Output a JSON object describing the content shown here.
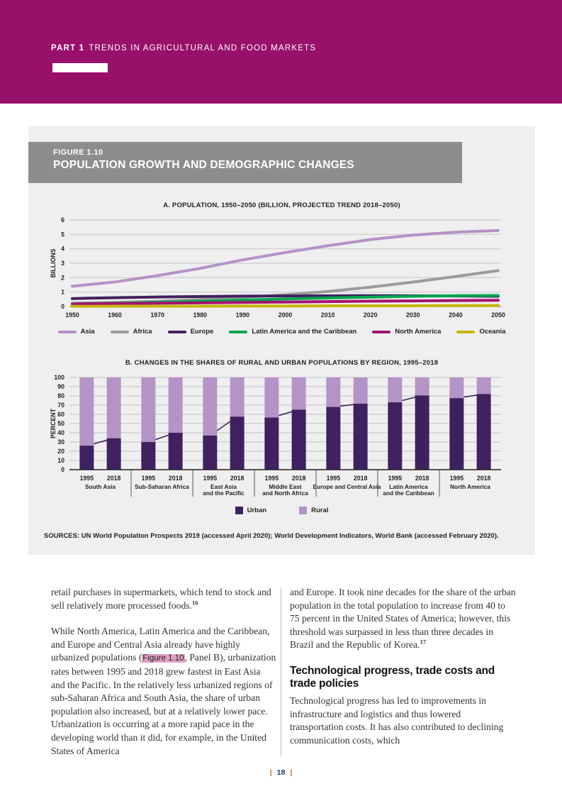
{
  "header": {
    "part_label": "PART 1",
    "part_title": "TRENDS IN AGRICULTURAL AND FOOD MARKETS"
  },
  "figure": {
    "label": "FIGURE 1.10",
    "title": "POPULATION GROWTH AND DEMOGRAPHIC CHANGES",
    "sources": "SOURCES: UN World Population Prospects 2019 (accessed April 2020); World Development Indicators, World Bank (accessed February 2020)."
  },
  "chart_data": [
    {
      "type": "line",
      "title": "A. POPULATION, 1950–2050 (BILLION, PROJECTED TREND 2018–2050)",
      "ylabel": "BILLIONS",
      "x": [
        1950,
        1960,
        1970,
        1980,
        1990,
        2000,
        2010,
        2020,
        2030,
        2040,
        2050
      ],
      "ylim": [
        0,
        6
      ],
      "yticks": [
        0,
        1,
        2,
        3,
        4,
        5,
        6
      ],
      "grid": true,
      "legend_position": "bottom",
      "series": [
        {
          "name": "Asia",
          "color": "#b492c6",
          "values": [
            1.4,
            1.7,
            2.14,
            2.64,
            3.23,
            3.74,
            4.21,
            4.64,
            4.95,
            5.15,
            5.27
          ]
        },
        {
          "name": "Africa",
          "color": "#9c9b9b",
          "values": [
            0.23,
            0.28,
            0.36,
            0.48,
            0.63,
            0.81,
            1.04,
            1.34,
            1.69,
            2.08,
            2.49
          ]
        },
        {
          "name": "Europe",
          "color": "#42215f",
          "values": [
            0.55,
            0.61,
            0.66,
            0.69,
            0.72,
            0.73,
            0.74,
            0.75,
            0.74,
            0.73,
            0.71
          ]
        },
        {
          "name": "Latin America and the Caribbean",
          "color": "#00a650",
          "values": [
            0.17,
            0.22,
            0.29,
            0.36,
            0.44,
            0.52,
            0.59,
            0.65,
            0.71,
            0.75,
            0.76
          ]
        },
        {
          "name": "North America",
          "color": "#a41270",
          "values": [
            0.17,
            0.2,
            0.23,
            0.25,
            0.28,
            0.31,
            0.34,
            0.37,
            0.39,
            0.41,
            0.43
          ]
        },
        {
          "name": "Oceania",
          "color": "#c5b70b",
          "values": [
            0.01,
            0.02,
            0.02,
            0.02,
            0.03,
            0.03,
            0.04,
            0.04,
            0.05,
            0.06,
            0.07
          ]
        }
      ]
    },
    {
      "type": "bar",
      "title": "B. CHANGES IN THE SHARES OF RURAL AND URBAN POPULATIONS BY REGION, 1995–2018",
      "ylabel": "PERCENT",
      "ylim": [
        0,
        100
      ],
      "yticks": [
        0,
        10,
        20,
        30,
        40,
        50,
        60,
        70,
        80,
        90,
        100
      ],
      "years": [
        "1995",
        "2018"
      ],
      "categories": [
        [
          "South Asia"
        ],
        [
          "Sub-Saharan Africa"
        ],
        [
          "East Asia",
          "and the Pacific"
        ],
        [
          "Middle East",
          "and North Africa"
        ],
        [
          "Europe and Central Asia"
        ],
        [
          "Latin America",
          "and the Caribbean"
        ],
        [
          "North America"
        ]
      ],
      "urban_shares": {
        "1995": [
          26,
          30,
          37,
          56.5,
          68,
          73,
          77.5
        ],
        "2018": [
          34,
          40,
          57.5,
          65,
          71.5,
          80.5,
          82
        ]
      },
      "stacks": [
        {
          "name": "Urban",
          "color": "#3f2160"
        },
        {
          "name": "Rural",
          "color": "#b494c6"
        }
      ]
    }
  ],
  "body": {
    "left": {
      "p1": "retail purchases in supermarkets, which tend to stock and sell relatively more processed foods.",
      "p1_note": "16",
      "p2_before": "While North America, Latin America and the Caribbean, and Europe and Central Asia already have highly urbanized populations (",
      "p2_figref": "Figure 1.10",
      "p2_after": ", Panel B), urbanization rates between 1995 and 2018 grew fastest in East Asia and the Pacific. In the relatively less urbanized regions of sub-Saharan Africa and South Asia, the share of urban population also increased, but at a relatively lower pace. Urbanization is occurring at a more rapid pace in the developing world than it did, for example, in the United States of America"
    },
    "right": {
      "p1": "and Europe. It took nine decades for the share of the urban population in the total population to increase from 40 to 75 percent in the United States of America; however, this threshold was surpassed in less than three decades in Brazil and the Republic of Korea.",
      "p1_note": "17",
      "heading": "Technological progress, trade costs and trade policies",
      "p2": "Technological progress has led to improvements in infrastructure and logistics and thus lowered transportation costs. It has also contributed to declining communication costs, which"
    }
  },
  "footer": {
    "pipe": "|",
    "page_number": "18"
  }
}
